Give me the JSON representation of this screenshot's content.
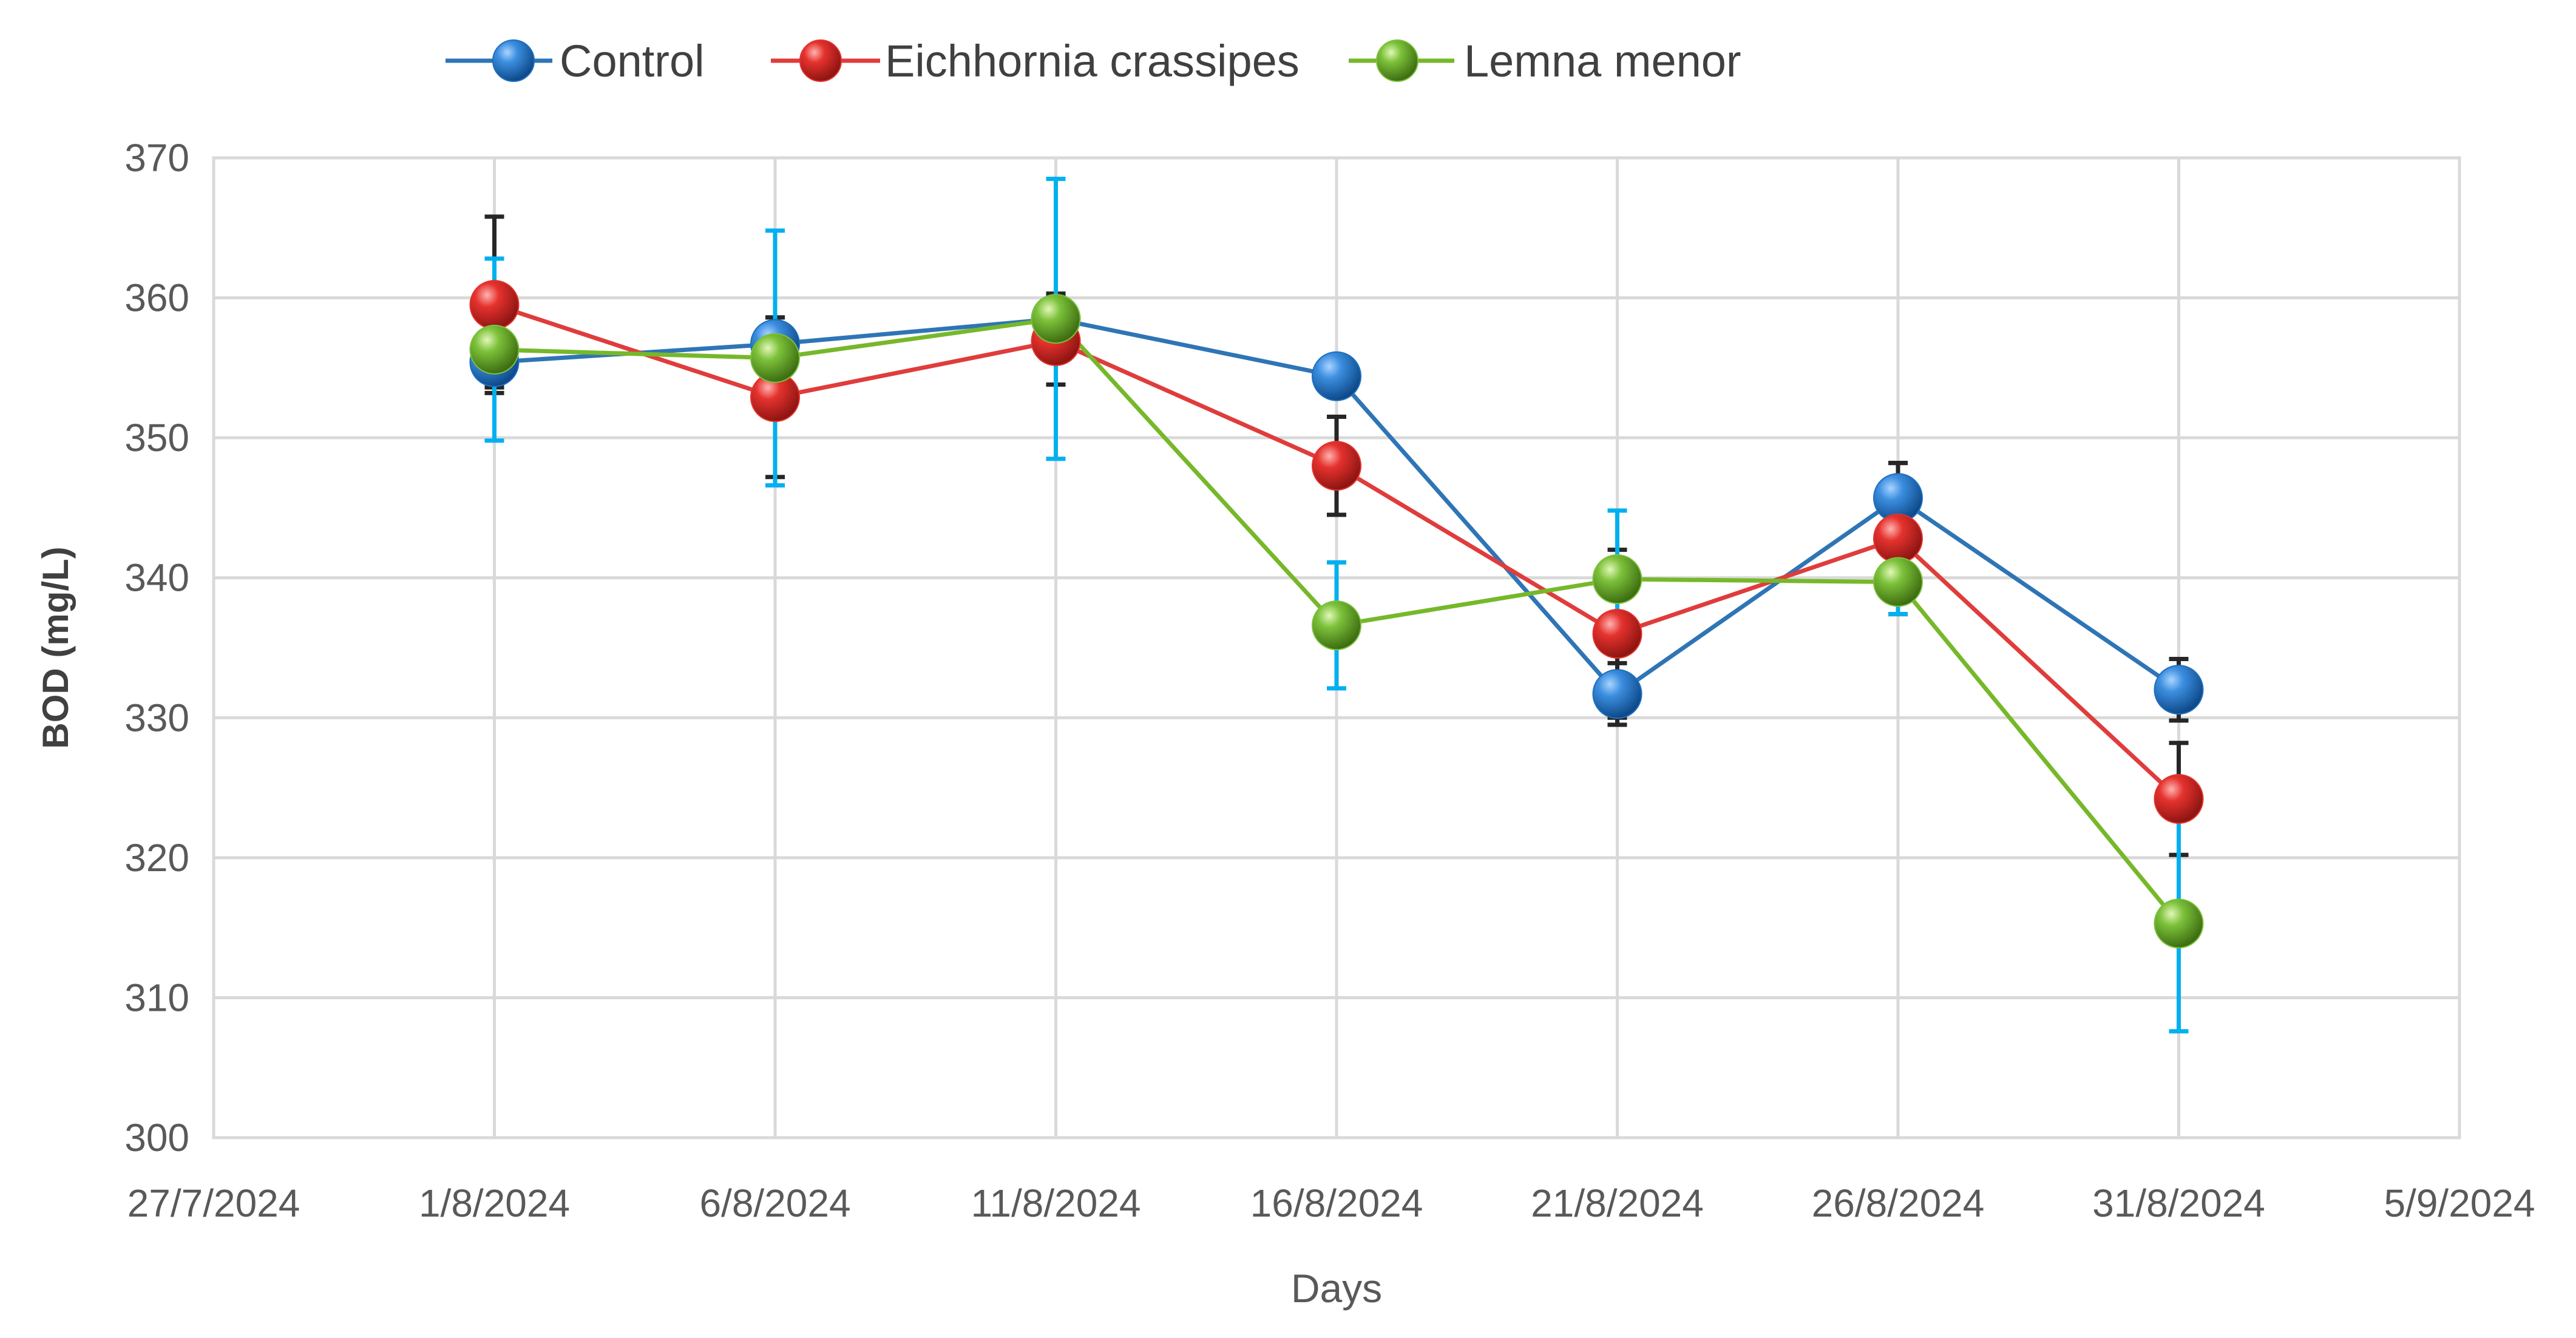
{
  "chart_data": {
    "type": "line",
    "xlabel": "Days",
    "ylabel": "BOD (mg/L)",
    "ylim": [
      300,
      370
    ],
    "y_ticks": [
      300,
      310,
      320,
      330,
      340,
      350,
      360,
      370
    ],
    "x_ticks": [
      "27/7/2024",
      "1/8/2024",
      "6/8/2024",
      "11/8/2024",
      "16/8/2024",
      "21/8/2024",
      "26/8/2024",
      "31/8/2024",
      "5/9/2024"
    ],
    "x": [
      "1/8/2024",
      "6/8/2024",
      "11/8/2024",
      "16/8/2024",
      "21/8/2024",
      "26/8/2024",
      "31/8/2024"
    ],
    "grid": true,
    "legend_position": "top",
    "series": [
      {
        "name": "Control",
        "color": "#2E75B6",
        "marker_color": "#1F6FC0",
        "error_bar_color": "#262626",
        "values": [
          355.4,
          356.7,
          358.5,
          354.4,
          331.7,
          345.7,
          332.0
        ],
        "error": [
          1.8,
          1.9,
          1.8,
          0.9,
          2.2,
          2.5,
          2.2
        ]
      },
      {
        "name": "Eichhornia crassipes",
        "color": "#E03C3C",
        "marker_color": "#E5322E",
        "error_bar_color": "#262626",
        "values": [
          359.5,
          352.9,
          356.9,
          348.0,
          336.0,
          342.8,
          324.2
        ],
        "error": [
          6.3,
          5.7,
          3.1,
          3.5,
          6.0,
          5.4,
          4.0
        ]
      },
      {
        "name": "Lemna menor",
        "color": "#76B82A",
        "marker_color": "#7CC13A",
        "error_bar_color": "#00B0F0",
        "values": [
          356.3,
          355.7,
          358.5,
          336.6,
          339.9,
          339.7,
          315.3
        ],
        "error": [
          6.5,
          9.1,
          10.0,
          4.5,
          4.9,
          2.3,
          7.7
        ]
      }
    ]
  }
}
